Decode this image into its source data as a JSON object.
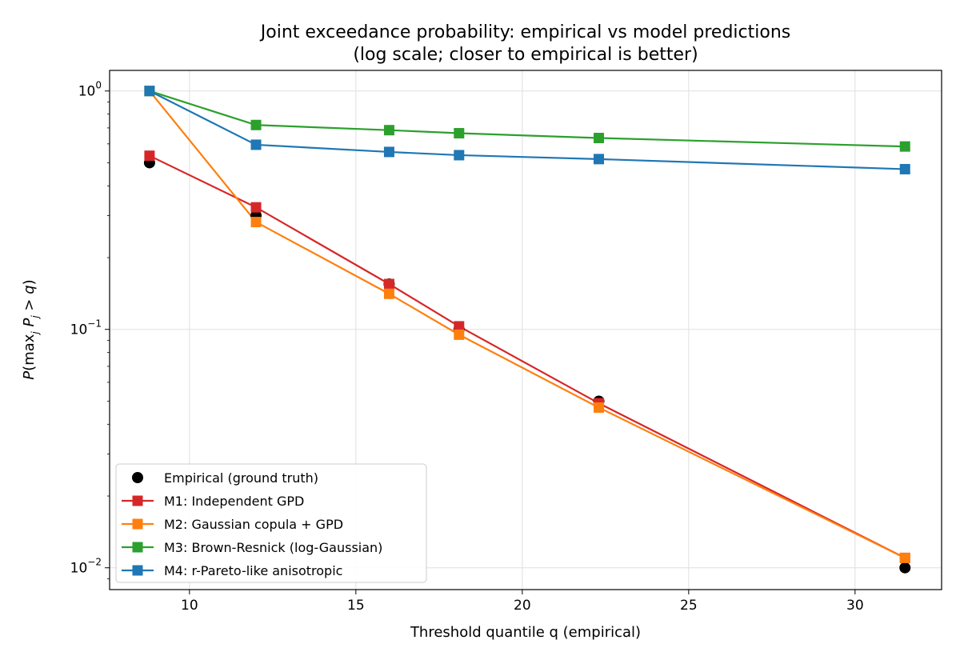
{
  "chart_data": {
    "type": "line",
    "title_line1": "Joint exceedance probability: empirical vs model predictions",
    "title_line2": "(log scale; closer to empirical is better)",
    "xlabel": "Threshold quantile q (empirical)",
    "ylabel": "P(max_j P_j > q)",
    "x_scale": "linear",
    "y_scale": "log",
    "xlim": [
      7.6,
      32.6
    ],
    "ylim": [
      0.0081,
      1.22
    ],
    "x_ticks": [
      10,
      15,
      20,
      25,
      30
    ],
    "y_ticks": [
      {
        "value": 1,
        "base": "10",
        "exp": "0"
      },
      {
        "value": 0.1,
        "base": "10",
        "exp": "−1"
      },
      {
        "value": 0.01,
        "base": "10",
        "exp": "−2"
      }
    ],
    "grid": true,
    "legend_position": "lower-left",
    "x": [
      8.8,
      12.0,
      16.0,
      18.1,
      22.3,
      31.5
    ],
    "series": [
      {
        "name": "Empirical (ground truth)",
        "marker": "circle",
        "line": false,
        "color": "#000000",
        "values": [
          0.5,
          0.3,
          0.155,
          0.1,
          0.05,
          0.01
        ]
      },
      {
        "name": "M1: Independent GPD",
        "marker": "square",
        "line": true,
        "color": "#d62728",
        "values": [
          0.535,
          0.325,
          0.155,
          0.103,
          0.049,
          0.011
        ]
      },
      {
        "name": "M2: Gaussian copula + GPD",
        "marker": "square",
        "line": true,
        "color": "#ff7f0e",
        "values": [
          1.0,
          0.282,
          0.141,
          0.095,
          0.047,
          0.011
        ]
      },
      {
        "name": "M3: Brown-Resnick (log-Gaussian)",
        "marker": "square",
        "line": true,
        "color": "#2ca02c",
        "values": [
          1.0,
          0.72,
          0.685,
          0.665,
          0.635,
          0.585
        ]
      },
      {
        "name": "M4: r-Pareto-like anisotropic",
        "marker": "square",
        "line": true,
        "color": "#1f77b4",
        "values": [
          1.0,
          0.595,
          0.555,
          0.538,
          0.518,
          0.47
        ]
      }
    ]
  }
}
